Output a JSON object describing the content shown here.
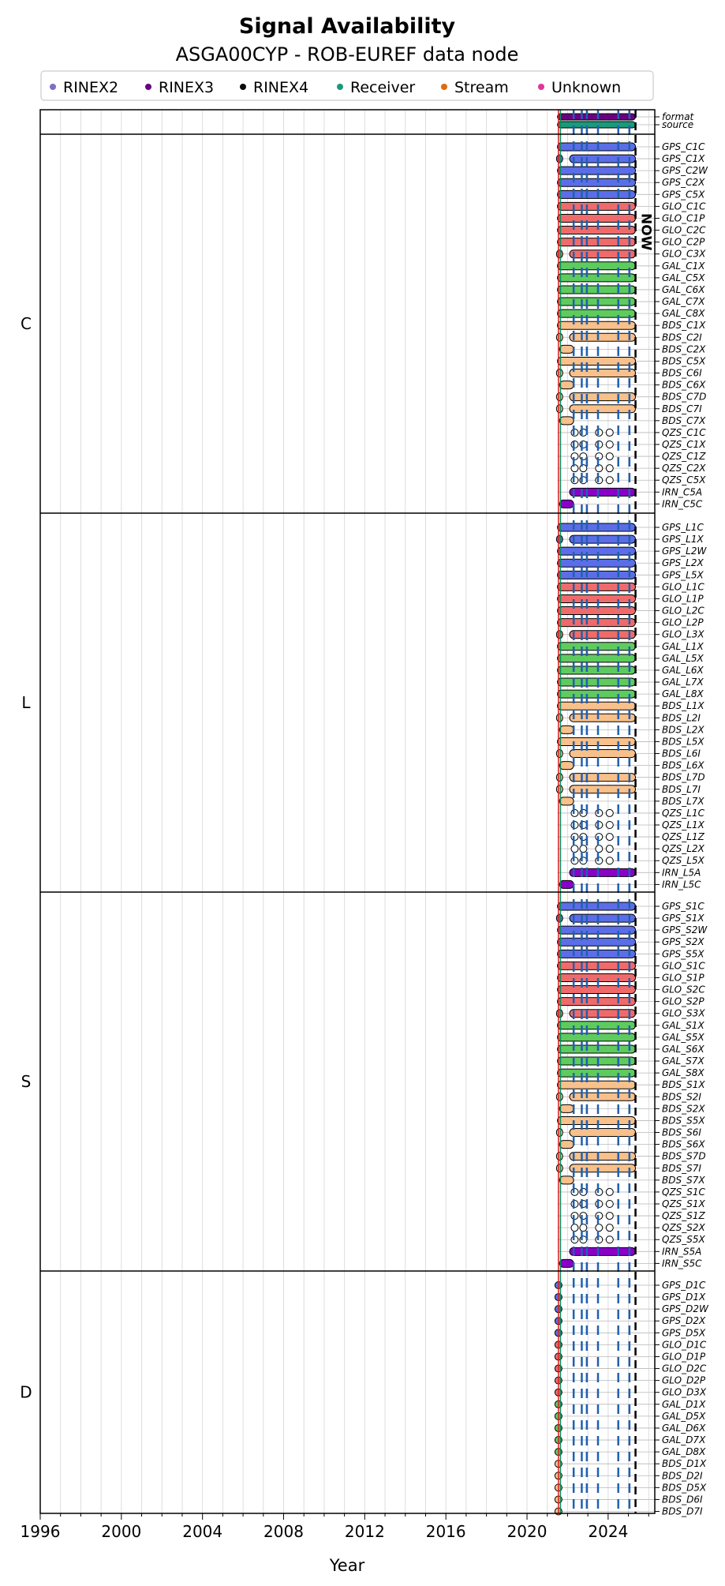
{
  "chart_data": {
    "type": "timeline",
    "title": "Signal Availability",
    "subtitle": "ASGA00CYP - ROB-EUREF data node",
    "xlabel": "Year",
    "xlim": [
      1996,
      2026.3
    ],
    "x_ticks": [
      "1996",
      "2000",
      "2004",
      "2008",
      "2012",
      "2016",
      "2020",
      "2024"
    ],
    "legend": [
      {
        "name": "RINEX2",
        "color": "#7b6fc6"
      },
      {
        "name": "RINEX3",
        "color": "#6a0080"
      },
      {
        "name": "RINEX4",
        "color": "#0a0a0a"
      },
      {
        "name": "Receiver",
        "color": "#1a9a7a"
      },
      {
        "name": "Stream",
        "color": "#e06a10"
      },
      {
        "name": "Unknown",
        "color": "#e0359a"
      }
    ],
    "now_label": "NOW",
    "now_year": 2025.35,
    "data_start": 2021.5,
    "event_lines": {
      "red": [
        2021.55
      ],
      "green": [
        2021.65
      ],
      "blue": [
        2022.3,
        2022.7,
        2022.95,
        2023.5,
        2024.5,
        2025.05
      ],
      "black": [
        2025.35
      ]
    },
    "colors": {
      "GPS": "#5b6ee8",
      "GLO": "#ef6b6b",
      "GAL": "#5ecb5e",
      "BDS": "#f8c08a",
      "QZS": "#ffffff",
      "IRN": "#8a00c8",
      "format": "#6a0080",
      "source": "#1a9a7a"
    },
    "meta_rows": [
      "format",
      "source"
    ],
    "groups": [
      {
        "name": "C",
        "rows": [
          "GPS_C1C",
          "GPS_C1X",
          "GPS_C2W",
          "GPS_C2X",
          "GPS_C5X",
          "GLO_C1C",
          "GLO_C1P",
          "GLO_C2C",
          "GLO_C2P",
          "GLO_C3X",
          "GAL_C1X",
          "GAL_C5X",
          "GAL_C6X",
          "GAL_C7X",
          "GAL_C8X",
          "BDS_C1X",
          "BDS_C2I",
          "BDS_C2X",
          "BDS_C5X",
          "BDS_C6I",
          "BDS_C6X",
          "BDS_C7D",
          "BDS_C7I",
          "BDS_C7X",
          "QZS_C1C",
          "QZS_C1X",
          "QZS_C1Z",
          "QZS_C2X",
          "QZS_C5X",
          "IRN_C5A",
          "IRN_C5C"
        ]
      },
      {
        "name": "L",
        "rows": [
          "GPS_L1C",
          "GPS_L1X",
          "GPS_L2W",
          "GPS_L2X",
          "GPS_L5X",
          "GLO_L1C",
          "GLO_L1P",
          "GLO_L2C",
          "GLO_L2P",
          "GLO_L3X",
          "GAL_L1X",
          "GAL_L5X",
          "GAL_L6X",
          "GAL_L7X",
          "GAL_L8X",
          "BDS_L1X",
          "BDS_L2I",
          "BDS_L2X",
          "BDS_L5X",
          "BDS_L6I",
          "BDS_L6X",
          "BDS_L7D",
          "BDS_L7I",
          "BDS_L7X",
          "QZS_L1C",
          "QZS_L1X",
          "QZS_L1Z",
          "QZS_L2X",
          "QZS_L5X",
          "IRN_L5A",
          "IRN_L5C"
        ]
      },
      {
        "name": "S",
        "rows": [
          "GPS_S1C",
          "GPS_S1X",
          "GPS_S2W",
          "GPS_S2X",
          "GPS_S5X",
          "GLO_S1C",
          "GLO_S1P",
          "GLO_S2C",
          "GLO_S2P",
          "GLO_S3X",
          "GAL_S1X",
          "GAL_S5X",
          "GAL_S6X",
          "GAL_S7X",
          "GAL_S8X",
          "BDS_S1X",
          "BDS_S2I",
          "BDS_S2X",
          "BDS_S5X",
          "BDS_S6I",
          "BDS_S6X",
          "BDS_S7D",
          "BDS_S7I",
          "BDS_S7X",
          "QZS_S1C",
          "QZS_S1X",
          "QZS_S1Z",
          "QZS_S2X",
          "QZS_S5X",
          "IRN_S5A",
          "IRN_S5C"
        ]
      },
      {
        "name": "D",
        "rows": [
          "GPS_D1C",
          "GPS_D1X",
          "GPS_D2W",
          "GPS_D2X",
          "GPS_D5X",
          "GLO_D1C",
          "GLO_D1P",
          "GLO_D2C",
          "GLO_D2P",
          "GLO_D3X",
          "GAL_D1X",
          "GAL_D5X",
          "GAL_D6X",
          "GAL_D7X",
          "GAL_D8X",
          "BDS_D1X",
          "BDS_D2I",
          "BDS_D5X",
          "BDS_D6I",
          "BDS_D7I"
        ]
      }
    ],
    "pattern_intervals": {
      "full": [
        [
          2021.5,
          2025.35
        ]
      ],
      "gap": [
        [
          2021.5,
          2021.6
        ],
        [
          2022.1,
          2025.35
        ]
      ],
      "early": [
        [
          2021.6,
          2022.3
        ]
      ],
      "qzs": [
        [
          2022.3,
          2022.4
        ],
        [
          2022.75,
          2022.8
        ],
        [
          2023.5,
          2023.6
        ],
        [
          2024.05,
          2024.1
        ]
      ],
      "irn_late": [
        [
          2022.1,
          2025.35
        ]
      ],
      "point": [
        [
          2021.5,
          2021.6
        ]
      ]
    }
  }
}
